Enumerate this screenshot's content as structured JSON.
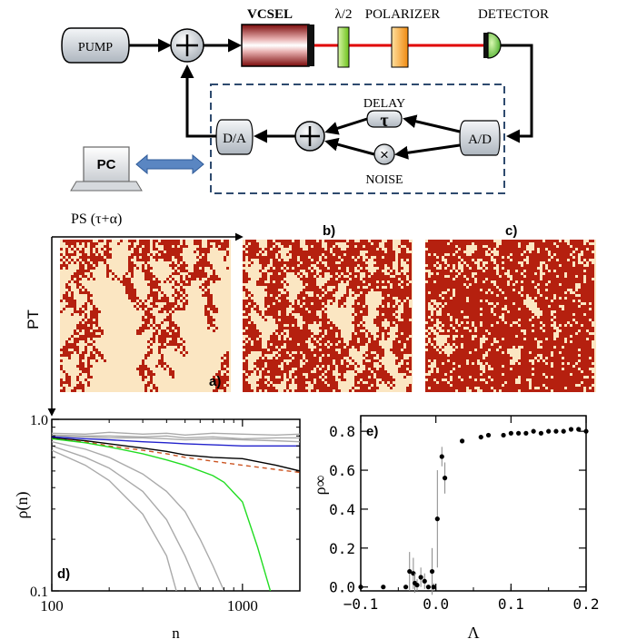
{
  "schematic": {
    "pump": "PUMP",
    "vcsel": "VCSEL",
    "halfwave": "λ/2",
    "polarizer": "POLARIZER",
    "detector": "DETECTOR",
    "delay": "DELAY",
    "tau": "τ",
    "noise": "NOISE",
    "da": "D/A",
    "ad": "A/D",
    "pc": "PC",
    "sum_symbol": "+",
    "mult_symbol": "×"
  },
  "spacetime": {
    "ps_label": "PS (τ+α)",
    "pt_label": "PT",
    "panel_a": "a)",
    "panel_b": "b)",
    "panel_c": "c)",
    "color_active": "#b5200f",
    "color_inactive": "#fbe6c2"
  },
  "chart_data": [
    {
      "type": "line",
      "panel_label": "d)",
      "xlabel": "n",
      "ylabel": "ρ(n)",
      "xscale": "log",
      "yscale": "log",
      "xlim": [
        100,
        2000
      ],
      "ylim": [
        0.1,
        1.0
      ],
      "xticks": [
        100,
        1000
      ],
      "xtick_labels": [
        "100",
        "1000"
      ],
      "yticks": [
        0.1,
        1.0
      ],
      "ytick_labels": [
        "0.1",
        "1.0"
      ],
      "series": [
        {
          "color": "#aaaaaa",
          "x": [
            100,
            150,
            200,
            300,
            400,
            500,
            700,
            1000,
            1500,
            2000
          ],
          "y": [
            0.83,
            0.82,
            0.84,
            0.82,
            0.83,
            0.81,
            0.83,
            0.82,
            0.81,
            0.82
          ]
        },
        {
          "color": "#aaaaaa",
          "x": [
            100,
            150,
            200,
            300,
            400,
            500,
            700,
            1000,
            1500,
            2000
          ],
          "y": [
            0.81,
            0.8,
            0.8,
            0.79,
            0.8,
            0.78,
            0.79,
            0.77,
            0.78,
            0.78
          ]
        },
        {
          "color": "#aaaaaa",
          "x": [
            100,
            150,
            200,
            300,
            400,
            500,
            700,
            1000,
            1500,
            2000
          ],
          "y": [
            0.8,
            0.79,
            0.78,
            0.78,
            0.77,
            0.76,
            0.77,
            0.76,
            0.75,
            0.74
          ]
        },
        {
          "color": "#2222cc",
          "x": [
            100,
            150,
            200,
            300,
            400,
            500,
            700,
            1000,
            1500,
            2000
          ],
          "y": [
            0.79,
            0.77,
            0.76,
            0.74,
            0.73,
            0.72,
            0.71,
            0.7,
            0.7,
            0.7
          ]
        },
        {
          "color": "#000000",
          "x": [
            100,
            150,
            200,
            300,
            400,
            500,
            700,
            1000,
            1500,
            2000
          ],
          "y": [
            0.78,
            0.75,
            0.72,
            0.68,
            0.65,
            0.62,
            0.6,
            0.59,
            0.54,
            0.5
          ]
        },
        {
          "color": "#cc5522",
          "dashed": true,
          "x": [
            100,
            150,
            200,
            300,
            400,
            500,
            700,
            1000,
            1500,
            2000
          ],
          "y": [
            0.77,
            0.74,
            0.7,
            0.66,
            0.63,
            0.6,
            0.57,
            0.54,
            0.51,
            0.49
          ]
        },
        {
          "color": "#22dd22",
          "x": [
            100,
            150,
            200,
            300,
            400,
            500,
            700,
            800,
            1000,
            1200,
            1400
          ],
          "y": [
            0.77,
            0.73,
            0.69,
            0.63,
            0.58,
            0.54,
            0.47,
            0.43,
            0.33,
            0.18,
            0.1
          ]
        },
        {
          "color": "#aaaaaa",
          "x": [
            100,
            150,
            200,
            300,
            400,
            500,
            600,
            700,
            800
          ],
          "y": [
            0.74,
            0.67,
            0.6,
            0.48,
            0.38,
            0.29,
            0.2,
            0.14,
            0.1
          ]
        },
        {
          "color": "#aaaaaa",
          "x": [
            100,
            150,
            200,
            300,
            400,
            500,
            600
          ],
          "y": [
            0.7,
            0.6,
            0.52,
            0.38,
            0.26,
            0.16,
            0.1
          ]
        },
        {
          "color": "#aaaaaa",
          "x": [
            100,
            150,
            200,
            300,
            400,
            450
          ],
          "y": [
            0.66,
            0.54,
            0.44,
            0.28,
            0.16,
            0.1
          ]
        }
      ]
    },
    {
      "type": "scatter",
      "panel_label": "e)",
      "xlabel": "Λ",
      "ylabel": "ρ∞",
      "xlim": [
        -0.1,
        0.2
      ],
      "ylim": [
        -0.02,
        0.88
      ],
      "xticks": [
        -0.1,
        0.0,
        0.1,
        0.2
      ],
      "xtick_labels": [
        "−0.1",
        "0.0",
        "0.1",
        "0.2"
      ],
      "yticks": [
        0.0,
        0.2,
        0.4,
        0.6,
        0.8
      ],
      "ytick_labels": [
        "0.0",
        "0.2",
        "0.4",
        "0.6",
        "0.8"
      ],
      "points": [
        {
          "x": -0.1,
          "y": 0.0,
          "err": 0.0
        },
        {
          "x": -0.07,
          "y": 0.0,
          "err": 0.0
        },
        {
          "x": -0.04,
          "y": 0.0,
          "err": 0.0
        },
        {
          "x": -0.035,
          "y": 0.08,
          "err": 0.1
        },
        {
          "x": -0.03,
          "y": 0.07,
          "err": 0.08
        },
        {
          "x": -0.028,
          "y": 0.02,
          "err": 0.05
        },
        {
          "x": -0.025,
          "y": 0.01,
          "err": 0.03
        },
        {
          "x": -0.02,
          "y": 0.05,
          "err": 0.05
        },
        {
          "x": -0.015,
          "y": 0.03,
          "err": 0.04
        },
        {
          "x": -0.01,
          "y": 0.0,
          "err": 0.0
        },
        {
          "x": -0.005,
          "y": 0.08,
          "err": 0.12
        },
        {
          "x": -0.003,
          "y": 0.0,
          "err": 0.02
        },
        {
          "x": 0.002,
          "y": 0.35,
          "err": 0.25
        },
        {
          "x": 0.008,
          "y": 0.67,
          "err": 0.05
        },
        {
          "x": 0.012,
          "y": 0.56,
          "err": 0.08
        },
        {
          "x": 0.035,
          "y": 0.75,
          "err": 0.0
        },
        {
          "x": 0.06,
          "y": 0.77,
          "err": 0.0
        },
        {
          "x": 0.07,
          "y": 0.78,
          "err": 0.0
        },
        {
          "x": 0.09,
          "y": 0.78,
          "err": 0.0
        },
        {
          "x": 0.1,
          "y": 0.79,
          "err": 0.0
        },
        {
          "x": 0.11,
          "y": 0.79,
          "err": 0.0
        },
        {
          "x": 0.12,
          "y": 0.79,
          "err": 0.0
        },
        {
          "x": 0.13,
          "y": 0.8,
          "err": 0.0
        },
        {
          "x": 0.14,
          "y": 0.79,
          "err": 0.0
        },
        {
          "x": 0.15,
          "y": 0.8,
          "err": 0.0
        },
        {
          "x": 0.16,
          "y": 0.8,
          "err": 0.0
        },
        {
          "x": 0.17,
          "y": 0.8,
          "err": 0.0
        },
        {
          "x": 0.18,
          "y": 0.81,
          "err": 0.0
        },
        {
          "x": 0.19,
          "y": 0.81,
          "err": 0.0
        },
        {
          "x": 0.2,
          "y": 0.8,
          "err": 0.0
        }
      ]
    }
  ]
}
